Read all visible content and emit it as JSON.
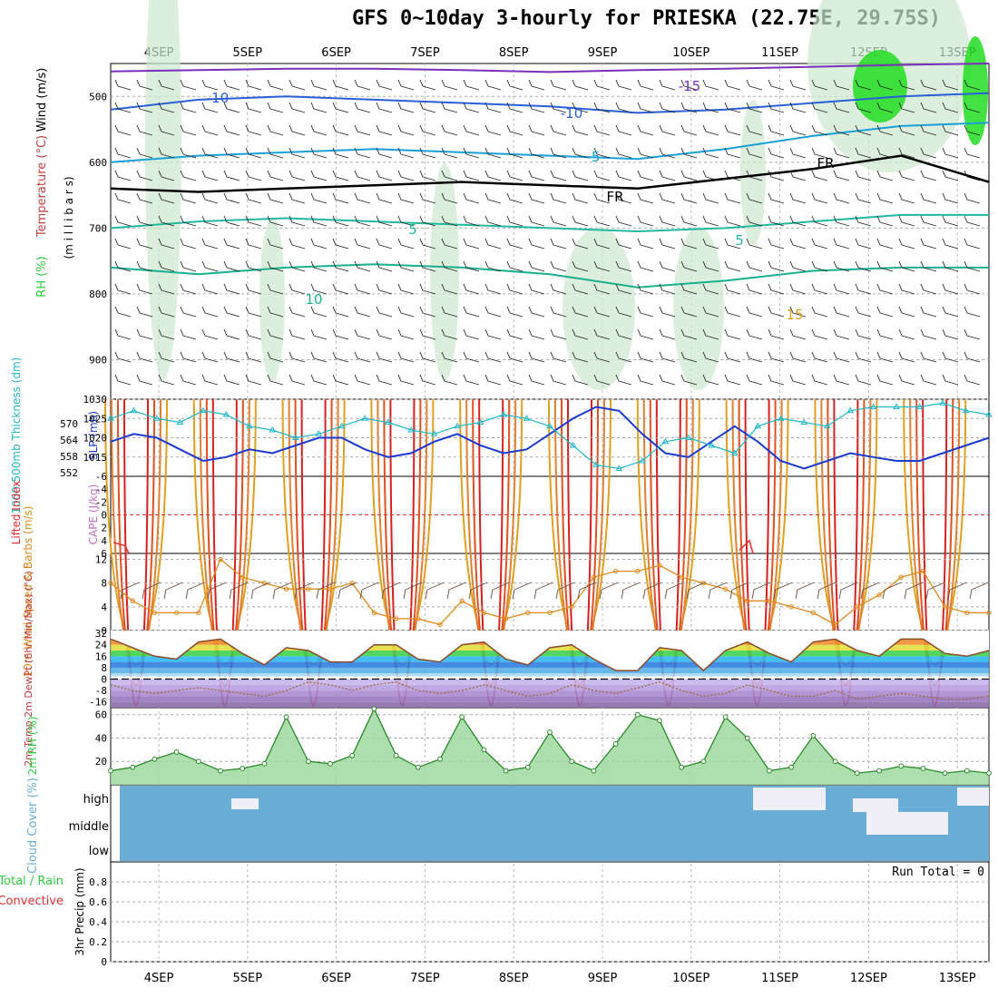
{
  "title": "GFS 0~10day 3-hourly for PRIESKA (22.75E, 29.75S)",
  "colors": {
    "wind": "#000000",
    "temperature": "#7b2fbe",
    "rh": "#2ecc40",
    "thickness": "#22b8c8",
    "slp": "#1a3ad0",
    "lifted_index": "#e03030",
    "cape": "#c070c0",
    "wind10": "#e08a1e",
    "cloud": "#6aaed6",
    "precip_total": "#2ecc40",
    "precip_conv": "#e03030",
    "dewpt": "#9a6a3a"
  },
  "chart_data": [
    {
      "type": "line",
      "panel": "upper-air",
      "dates": [
        "4SEP",
        "5SEP",
        "6SEP",
        "7SEP",
        "8SEP",
        "9SEP",
        "10SEP",
        "11SEP",
        "12SEP",
        "13SEP"
      ],
      "ylabel_parts": [
        "Wind (m/s)",
        "Temperature (°C)",
        "RH (%)"
      ],
      "ylabel_units": "(m i l l i b a r s)",
      "yticks": [
        500,
        600,
        700,
        800,
        900
      ],
      "ylim": [
        960,
        450
      ],
      "contour_labels": [
        "-15",
        "-10",
        "-10",
        "-5",
        "FR",
        "FR",
        "5",
        "5",
        "10",
        "15"
      ],
      "isotherms": [
        {
          "name": "-15",
          "color": "#7b2fbe",
          "values": [
            462,
            460,
            458,
            458,
            460,
            463,
            460,
            458,
            455,
            452,
            450
          ]
        },
        {
          "name": "-10",
          "color": "#2a5fd8",
          "values": [
            520,
            505,
            500,
            505,
            510,
            515,
            525,
            520,
            510,
            500,
            495
          ]
        },
        {
          "name": "-5",
          "color": "#1aa0d8",
          "values": [
            600,
            590,
            585,
            580,
            585,
            590,
            595,
            580,
            560,
            545,
            540
          ]
        },
        {
          "name": "FR",
          "color": "#000000",
          "values": [
            640,
            645,
            640,
            635,
            630,
            635,
            640,
            625,
            610,
            590,
            630
          ]
        },
        {
          "name": "5",
          "color": "#22b8a0",
          "values": [
            700,
            690,
            685,
            690,
            695,
            700,
            705,
            700,
            690,
            680,
            680
          ]
        },
        {
          "name": "10",
          "color": "#18b090",
          "values": [
            760,
            770,
            760,
            755,
            760,
            770,
            790,
            780,
            765,
            760,
            760
          ]
        }
      ]
    },
    {
      "type": "line",
      "panel": "slp-thickness",
      "ylabel_left": "1000-500mb Thickness (dm)",
      "ylabel_right": "SLP (mb)",
      "yticks_thickness": [
        552,
        558,
        564,
        570
      ],
      "yticks_slp": [
        1015,
        1020,
        1025,
        1030
      ],
      "ylim_slp": [
        1010,
        1030
      ],
      "series": [
        {
          "name": "SLP",
          "values": [
            1019,
            1021,
            1020,
            1017,
            1014,
            1015,
            1017,
            1016,
            1018,
            1020,
            1020,
            1017,
            1015,
            1016,
            1019,
            1021,
            1018,
            1016,
            1017,
            1021,
            1025,
            1028,
            1027,
            1021,
            1016,
            1015,
            1019,
            1023,
            1019,
            1014,
            1012,
            1014,
            1016,
            1015,
            1014,
            1014,
            1016,
            1018,
            1020
          ]
        },
        {
          "name": "Thickness",
          "values": [
            1025,
            1027,
            1025,
            1024,
            1027,
            1026,
            1023,
            1022,
            1020,
            1021,
            1023,
            1025,
            1024,
            1022,
            1021,
            1023,
            1024,
            1026,
            1025,
            1023,
            1018,
            1013,
            1012,
            1014,
            1019,
            1020,
            1018,
            1016,
            1023,
            1025,
            1024,
            1023,
            1027,
            1028,
            1028,
            1028,
            1029,
            1027,
            1026
          ]
        }
      ]
    },
    {
      "type": "line",
      "panel": "cape-li",
      "ylabel_left": "Lifted Index",
      "ylabel_right": "CAPE (J/kg)",
      "yticks": [
        "-6",
        "-4",
        "-2",
        "0",
        "2",
        "4",
        "6"
      ],
      "ylim": [
        -6,
        6
      ]
    },
    {
      "type": "line",
      "panel": "wind10m",
      "ylabel": "10m Wind Speed & Barbs (m/s)",
      "yticks": [
        0,
        4,
        8,
        12
      ],
      "ylim": [
        0,
        13
      ],
      "series": [
        {
          "name": "10m Wind Speed",
          "values": [
            8,
            5,
            3,
            3,
            3,
            12,
            9,
            8,
            7,
            7,
            7,
            8,
            3,
            2,
            2,
            1,
            5,
            3,
            2,
            3,
            3,
            4,
            9,
            10,
            10,
            11,
            9,
            8,
            7,
            5,
            5,
            4,
            3,
            1,
            4,
            6,
            9,
            10,
            4,
            3,
            3
          ]
        }
      ]
    },
    {
      "type": "area",
      "panel": "temp2m",
      "ylabel": "2m Temp 2m DewPt (6hr Min/Max) (°C)",
      "yticks": [
        -16,
        -8,
        0,
        8,
        16,
        24,
        32
      ],
      "ylim": [
        -20,
        34
      ],
      "series": [
        {
          "name": "Temp",
          "values": [
            28,
            22,
            16,
            14,
            26,
            28,
            18,
            10,
            22,
            20,
            12,
            12,
            24,
            24,
            14,
            12,
            24,
            26,
            14,
            10,
            22,
            24,
            14,
            6,
            6,
            22,
            20,
            6,
            20,
            26,
            18,
            12,
            26,
            28,
            20,
            16,
            28,
            28,
            18,
            16,
            20
          ]
        },
        {
          "name": "DewPt",
          "values": [
            -4,
            -8,
            -10,
            -8,
            -6,
            -8,
            -10,
            -12,
            -8,
            -2,
            -4,
            -8,
            -4,
            -2,
            -8,
            -10,
            -8,
            -4,
            -8,
            -12,
            -10,
            -4,
            -8,
            -10,
            -6,
            -2,
            -8,
            -12,
            -10,
            -4,
            -8,
            -12,
            -12,
            -8,
            -14,
            -12,
            -10,
            -12,
            -14,
            -14,
            -12
          ]
        }
      ]
    },
    {
      "type": "area",
      "panel": "rh2m",
      "ylabel": "2m RH (%)",
      "yticks": [
        20,
        40,
        60
      ],
      "ylim": [
        0,
        66
      ],
      "series": [
        {
          "name": "2m RH",
          "values": [
            12,
            15,
            22,
            28,
            20,
            12,
            14,
            18,
            58,
            20,
            18,
            25,
            65,
            25,
            15,
            22,
            58,
            30,
            12,
            15,
            45,
            20,
            12,
            35,
            60,
            55,
            15,
            20,
            58,
            40,
            12,
            15,
            42,
            20,
            10,
            12,
            16,
            14,
            10,
            12,
            10
          ]
        }
      ]
    },
    {
      "type": "bar",
      "panel": "cloud",
      "ylabel": "Cloud Cover (%)",
      "levels": [
        "high",
        "middle",
        "low"
      ]
    },
    {
      "type": "bar",
      "panel": "precip",
      "ylabel_left": "Total / Rain",
      "ylabel_left2": "Convective",
      "ylabel": "3hr Precip (mm)",
      "yticks": [
        "0",
        "0.2",
        "0.4",
        "0.6",
        "0.8"
      ],
      "ylim": [
        0,
        1
      ],
      "run_total_label": "Run Total = 0"
    }
  ]
}
